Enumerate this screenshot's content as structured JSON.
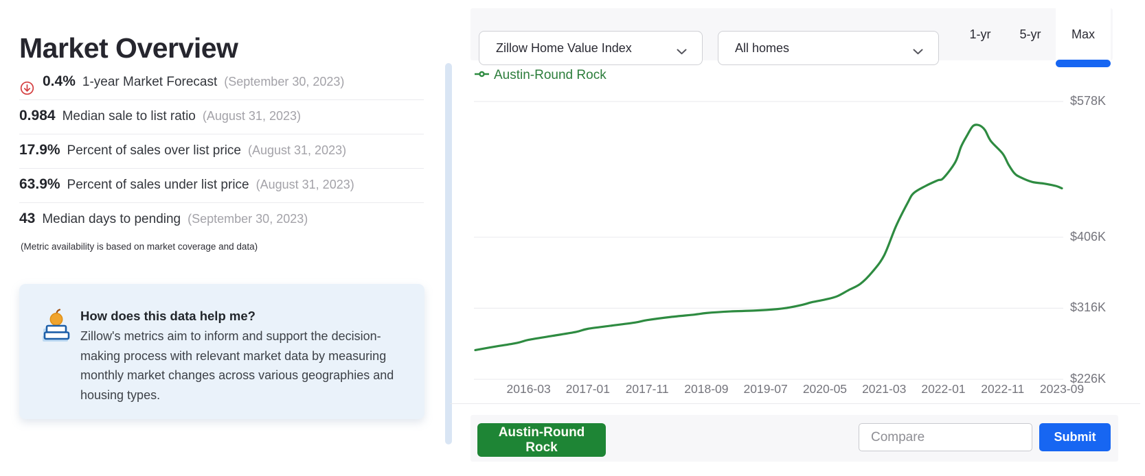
{
  "left_panel": {
    "title": "Market Overview",
    "stats": [
      {
        "value": "0.4%",
        "label": "1-year Market Forecast",
        "date": "(September 30, 2023)",
        "icon": "forecast-down-icon"
      },
      {
        "value": "0.984",
        "label": "Median sale to list ratio",
        "date": "(August 31, 2023)"
      },
      {
        "value": "17.9%",
        "label": "Percent of sales over list price",
        "date": "(August 31, 2023)"
      },
      {
        "value": "63.9%",
        "label": "Percent of sales under list price",
        "date": "(August 31, 2023)"
      },
      {
        "value": "43",
        "label": "Median days to pending",
        "date": "(September 30, 2023)"
      }
    ],
    "footnote": "(Metric availability is based on market coverage and data)",
    "help_box": {
      "icon": "books-apple-icon",
      "title": "How does this data help me?",
      "body": "Zillow's metrics aim to inform and support the decision-making process with relevant market data by measuring monthly market changes across various geographies and housing types."
    }
  },
  "chart_panel": {
    "toolbar": {
      "metric_dropdown": {
        "value": "Zillow Home Value Index"
      },
      "homes_dropdown": {
        "value": "All homes"
      },
      "range_tabs": [
        {
          "label": "1-yr",
          "active": false
        },
        {
          "label": "5-yr",
          "active": false
        },
        {
          "label": "Max",
          "active": true
        }
      ]
    },
    "legend": {
      "label": "Austin-Round Rock",
      "color": "#2c7d3b"
    },
    "footer": {
      "region_button": "Austin-Round Rock",
      "compare_placeholder": "Compare",
      "submit_label": "Submit"
    }
  },
  "chart_data": {
    "type": "line",
    "title": "Zillow Home Value Index — All homes — Max range",
    "legend_position": "top-left",
    "grid": "horizontal",
    "line_color": "#2e8b41",
    "y_unit": "USD thousands",
    "x_range": [
      "2015-06",
      "2023-09"
    ],
    "y_ticks": [
      {
        "label": "$578K",
        "value": 578
      },
      {
        "label": "$406K",
        "value": 406
      },
      {
        "label": "$316K",
        "value": 316
      },
      {
        "label": "$226K",
        "value": 226
      }
    ],
    "x_tick_labels": [
      "2016-03",
      "2017-01",
      "2017-11",
      "2018-09",
      "2019-07",
      "2020-05",
      "2021-03",
      "2022-01",
      "2022-11",
      "2023-09"
    ],
    "series": [
      {
        "name": "Austin-Round Rock",
        "color": "#2e8b41",
        "points": [
          [
            "2015-06",
            263
          ],
          [
            "2015-09",
            267
          ],
          [
            "2016-01",
            272
          ],
          [
            "2016-03",
            276
          ],
          [
            "2016-07",
            281
          ],
          [
            "2016-11",
            286
          ],
          [
            "2017-01",
            290
          ],
          [
            "2017-05",
            294
          ],
          [
            "2017-09",
            298
          ],
          [
            "2017-11",
            301
          ],
          [
            "2018-03",
            305
          ],
          [
            "2018-07",
            308
          ],
          [
            "2018-09",
            310
          ],
          [
            "2019-01",
            312
          ],
          [
            "2019-05",
            313
          ],
          [
            "2019-09",
            315
          ],
          [
            "2019-11",
            317
          ],
          [
            "2020-01",
            320
          ],
          [
            "2020-03",
            324
          ],
          [
            "2020-05",
            327
          ],
          [
            "2020-07",
            331
          ],
          [
            "2020-09",
            339
          ],
          [
            "2020-11",
            347
          ],
          [
            "2021-01",
            362
          ],
          [
            "2021-03",
            383
          ],
          [
            "2021-05",
            420
          ],
          [
            "2021-07",
            450
          ],
          [
            "2021-08",
            462
          ],
          [
            "2021-10",
            471
          ],
          [
            "2021-12",
            478
          ],
          [
            "2022-01",
            481
          ],
          [
            "2022-03",
            501
          ],
          [
            "2022-04",
            521
          ],
          [
            "2022-05",
            535
          ],
          [
            "2022-06",
            547
          ],
          [
            "2022-07",
            548
          ],
          [
            "2022-08",
            542
          ],
          [
            "2022-09",
            528
          ],
          [
            "2022-11",
            512
          ],
          [
            "2022-12",
            498
          ],
          [
            "2023-01",
            487
          ],
          [
            "2023-02",
            482
          ],
          [
            "2023-04",
            476
          ],
          [
            "2023-06",
            474
          ],
          [
            "2023-08",
            471
          ],
          [
            "2023-09",
            468
          ]
        ]
      }
    ]
  },
  "colors": {
    "accent_blue": "#1766f2",
    "line_green": "#2e8b41",
    "button_green": "#1e8535",
    "forecast_red": "#d43d3f",
    "help_box_bg": "#eaf2fa",
    "toolbar_bg": "#f7f7f9",
    "muted_text": "#a3a2a8",
    "axis_text": "#74747c"
  }
}
